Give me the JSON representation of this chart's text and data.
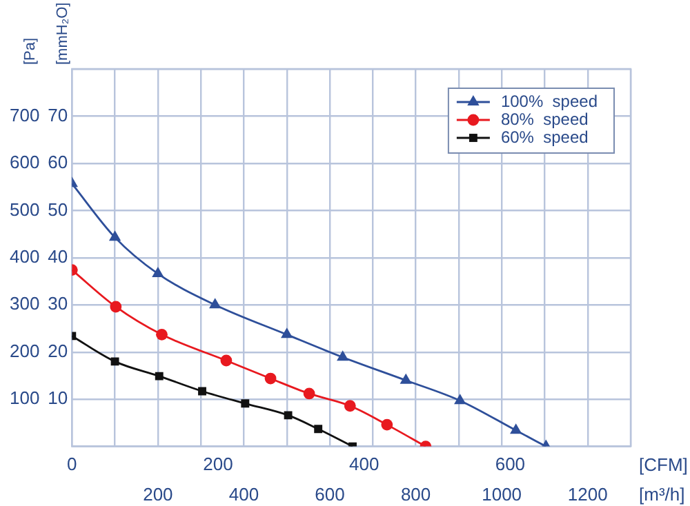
{
  "chart_data": {
    "type": "line",
    "xlabel": "[m³/h]",
    "x2label": "[CFM]",
    "ylabel": "[Pa]",
    "y2label": "[mmH₂O]",
    "xlim": [
      0,
      1300
    ],
    "xticks": [
      {
        "value": 0,
        "label": null
      },
      {
        "value": 100,
        "label": null
      },
      200,
      {
        "value": 300,
        "label": null
      },
      400,
      {
        "value": 500,
        "label": null
      },
      600,
      {
        "value": 700,
        "label": null
      },
      800,
      {
        "value": 900,
        "label": null
      },
      1000,
      {
        "value": 1100,
        "label": null
      },
      1200,
      {
        "value": 1300,
        "label": null
      }
    ],
    "x2lim": [
      0,
      765
    ],
    "x2ticks": [
      0,
      200,
      400,
      600
    ],
    "ylim": [
      0,
      800
    ],
    "yticks": [
      {
        "value": 0,
        "label": null
      },
      100,
      200,
      300,
      400,
      500,
      600,
      700,
      {
        "value": 800,
        "label": null
      }
    ],
    "y2lim": [
      0,
      80
    ],
    "y2ticks": [
      10,
      20,
      30,
      40,
      50,
      60,
      70
    ],
    "grid": true,
    "legend": "top right",
    "line_style": "solid",
    "series": [
      {
        "name": "100%  speed",
        "color": "#2e4f9a",
        "marker": "triangle",
        "x": [
          0,
          100,
          200,
          333,
          500,
          630,
          777,
          903,
          1033,
          1103
        ],
        "values": [
          557,
          443,
          366,
          300,
          237,
          189,
          140,
          97,
          34,
          0
        ]
      },
      {
        "name": "80%  speed",
        "color": "#e8191f",
        "marker": "circle",
        "x": [
          0,
          102,
          209,
          359,
          462,
          552,
          647,
          733,
          823
        ],
        "values": [
          374,
          296,
          237,
          182,
          144,
          112,
          86,
          46,
          0
        ]
      },
      {
        "name": "60%  speed",
        "color": "#111111",
        "marker": "square",
        "x": [
          0,
          100,
          203,
          303,
          403,
          503,
          573,
          653
        ],
        "values": [
          234,
          180,
          149,
          117,
          91,
          66,
          37,
          0
        ]
      }
    ]
  }
}
